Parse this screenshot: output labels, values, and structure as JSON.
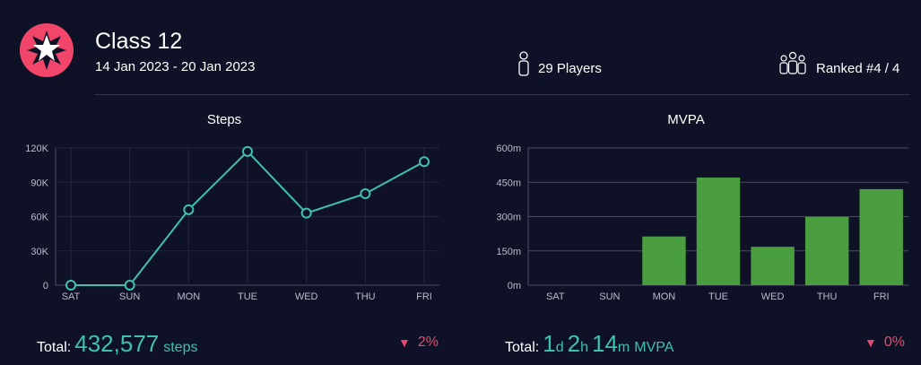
{
  "header": {
    "class_title": "Class 12",
    "date_range": "14 Jan 2023 - 20 Jan 2023",
    "players_label": "29 Players",
    "ranked_label": "Ranked #4 / 4",
    "logo_icon": "star-burst-icon",
    "logo_color": "#f2456a"
  },
  "colors": {
    "background": "#0f1126",
    "accent": "#3fc1b0",
    "bar": "#4a9e3f",
    "negative": "#e74a6a"
  },
  "steps_panel": {
    "total_prefix": "Total:",
    "total_value": "432,577",
    "total_unit": "steps",
    "change": "2%",
    "change_direction": "down"
  },
  "mvpa_panel": {
    "total_prefix": "Total:",
    "days_value": "1",
    "days_unit": "d",
    "hours_value": "2",
    "hours_unit": "h",
    "minutes_value": "14",
    "minutes_unit": "m",
    "total_unit": "MVPA",
    "change": "0%",
    "change_direction": "down"
  },
  "chart_data": [
    {
      "type": "line",
      "title": "Steps",
      "categories": [
        "SAT",
        "SUN",
        "MON",
        "TUE",
        "WED",
        "THU",
        "FRI"
      ],
      "values": [
        0,
        0,
        66000,
        117000,
        63000,
        80000,
        108000
      ],
      "ylim": [
        0,
        120000
      ],
      "yticks": [
        0,
        30000,
        60000,
        90000,
        120000
      ],
      "ytick_labels": [
        "0",
        "30K",
        "60K",
        "90K",
        "120K"
      ],
      "grid": true,
      "color": "#3fc1b0"
    },
    {
      "type": "bar",
      "title": "MVPA",
      "categories": [
        "SAT",
        "SUN",
        "MON",
        "TUE",
        "WED",
        "THU",
        "FRI"
      ],
      "values": [
        0,
        0,
        213,
        471,
        168,
        298,
        420
      ],
      "ylim": [
        0,
        600
      ],
      "yticks": [
        0,
        150,
        300,
        450,
        600
      ],
      "ytick_labels": [
        "0m",
        "150m",
        "300m",
        "450m",
        "600m"
      ],
      "grid": true,
      "color": "#4a9e3f"
    }
  ]
}
